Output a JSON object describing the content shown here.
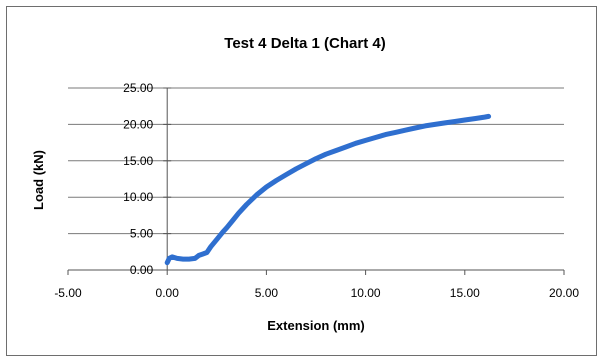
{
  "chart_data": {
    "type": "line",
    "title": "Test 4 Delta 1 (Chart 4)",
    "xlabel": "Extension (mm)",
    "ylabel": "Load (kN)",
    "xlim": [
      -5,
      20
    ],
    "ylim": [
      0,
      25
    ],
    "x_ticks": [
      "-5.00",
      "0.00",
      "5.00",
      "10.00",
      "15.00",
      "20.00"
    ],
    "y_ticks": [
      "0.00",
      "5.00",
      "10.00",
      "15.00",
      "20.00",
      "25.00"
    ],
    "grid": "horizontal",
    "legend": "none",
    "series": [
      {
        "color": "#2f6fcf",
        "x": [
          0.0,
          0.1,
          0.25,
          0.5,
          0.8,
          1.1,
          1.4,
          1.6,
          1.8,
          2.0,
          2.2,
          2.5,
          2.8,
          3.0,
          3.3,
          3.6,
          4.0,
          4.5,
          5.0,
          5.5,
          6.0,
          6.5,
          7.0,
          7.5,
          8.0,
          8.5,
          9.0,
          9.5,
          10.0,
          10.5,
          11.0,
          11.5,
          12.0,
          12.5,
          13.0,
          13.5,
          14.0,
          14.5,
          15.0,
          15.5,
          16.0,
          16.2
        ],
        "y": [
          1.0,
          1.6,
          1.8,
          1.6,
          1.5,
          1.5,
          1.6,
          2.0,
          2.2,
          2.4,
          3.2,
          4.2,
          5.2,
          5.8,
          6.8,
          7.8,
          9.0,
          10.3,
          11.4,
          12.3,
          13.1,
          13.9,
          14.6,
          15.3,
          15.9,
          16.4,
          16.9,
          17.4,
          17.8,
          18.2,
          18.6,
          18.9,
          19.2,
          19.5,
          19.8,
          20.0,
          20.2,
          20.4,
          20.6,
          20.8,
          21.0,
          21.1
        ]
      }
    ]
  }
}
